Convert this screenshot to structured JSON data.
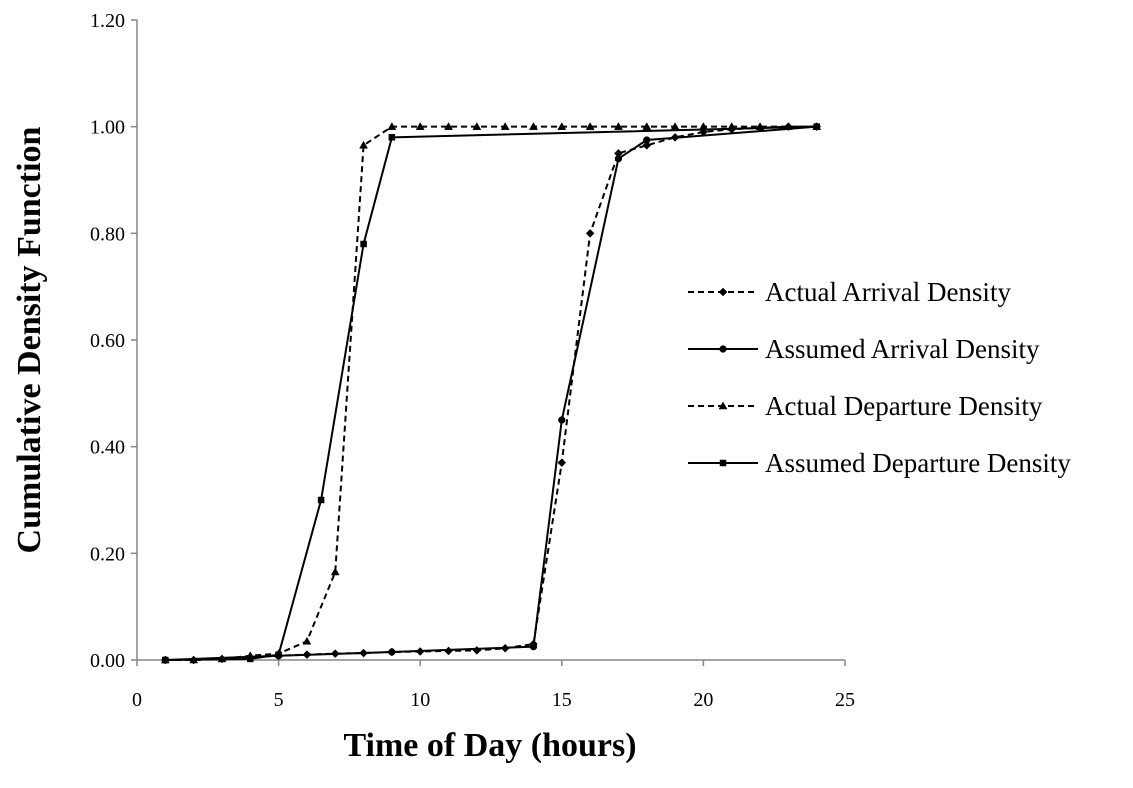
{
  "chart_data": {
    "type": "line",
    "xlabel": "Time of Day (hours)",
    "ylabel": "Cumulative Density Function",
    "xlim": [
      0,
      25
    ],
    "ylim": [
      0,
      1.2
    ],
    "x_ticks": [
      "0",
      "5",
      "10",
      "15",
      "20",
      "25"
    ],
    "y_ticks": [
      "0.00",
      "0.20",
      "0.40",
      "0.60",
      "0.80",
      "1.00",
      "1.20"
    ],
    "grid": false,
    "legend_position": "right",
    "series": [
      {
        "name": "Actual Arrival Density",
        "line": "dashed",
        "marker": "diamond",
        "points": [
          [
            1,
            0
          ],
          [
            2,
            0
          ],
          [
            3,
            0.002
          ],
          [
            4,
            0.005
          ],
          [
            5,
            0.008
          ],
          [
            6,
            0.01
          ],
          [
            7,
            0.012
          ],
          [
            8,
            0.013
          ],
          [
            9,
            0.015
          ],
          [
            10,
            0.016
          ],
          [
            11,
            0.017
          ],
          [
            12,
            0.018
          ],
          [
            13,
            0.022
          ],
          [
            14,
            0.03
          ],
          [
            15,
            0.37
          ],
          [
            16,
            0.8
          ],
          [
            17,
            0.95
          ],
          [
            18,
            0.965
          ],
          [
            19,
            0.98
          ],
          [
            20,
            0.99
          ],
          [
            21,
            0.995
          ],
          [
            22,
            0.998
          ],
          [
            23,
            1.0
          ],
          [
            24,
            1.0
          ]
        ]
      },
      {
        "name": "Assumed Arrival Density",
        "line": "solid",
        "marker": "circle",
        "points": [
          [
            1,
            0
          ],
          [
            5,
            0.008
          ],
          [
            9,
            0.015
          ],
          [
            14,
            0.025
          ],
          [
            15,
            0.45
          ],
          [
            17,
            0.94
          ],
          [
            18,
            0.975
          ],
          [
            24,
            1.0
          ]
        ]
      },
      {
        "name": "Actual Departure Density",
        "line": "dashed",
        "marker": "triangle",
        "points": [
          [
            1,
            0
          ],
          [
            2,
            0
          ],
          [
            3,
            0.002
          ],
          [
            4,
            0.008
          ],
          [
            5,
            0.012
          ],
          [
            6,
            0.035
          ],
          [
            7,
            0.165
          ],
          [
            8,
            0.965
          ],
          [
            9,
            1.0
          ],
          [
            10,
            1.0
          ],
          [
            11,
            1.0
          ],
          [
            12,
            1.0
          ],
          [
            13,
            1.0
          ],
          [
            14,
            1.0
          ],
          [
            15,
            1.0
          ],
          [
            16,
            1.0
          ],
          [
            17,
            1.0
          ],
          [
            18,
            1.0
          ],
          [
            19,
            1.0
          ],
          [
            20,
            1.0
          ],
          [
            21,
            1.0
          ],
          [
            22,
            1.0
          ],
          [
            23,
            1.0
          ],
          [
            24,
            1.0
          ]
        ]
      },
      {
        "name": "Assumed Departure Density",
        "line": "solid",
        "marker": "square",
        "points": [
          [
            1,
            0
          ],
          [
            4,
            0.002
          ],
          [
            5,
            0.01
          ],
          [
            6.5,
            0.3
          ],
          [
            8,
            0.78
          ],
          [
            9,
            0.98
          ],
          [
            24,
            1.0
          ]
        ]
      }
    ]
  }
}
